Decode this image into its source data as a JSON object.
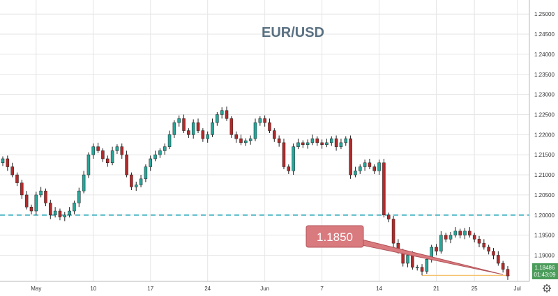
{
  "chart_data": {
    "type": "candlestick",
    "title": "EUR/USD",
    "grid": true,
    "ylim": [
      1.1835,
      1.2535
    ],
    "y_ticks": [
      "1.25000",
      "1.24500",
      "1.24000",
      "1.23500",
      "1.23000",
      "1.22500",
      "1.22000",
      "1.21500",
      "1.21000",
      "1.20500",
      "1.20000",
      "1.19500",
      "1.19000"
    ],
    "x_ticks": [
      {
        "label": "May",
        "index": 7
      },
      {
        "label": "10",
        "index": 19
      },
      {
        "label": "17",
        "index": 31
      },
      {
        "label": "24",
        "index": 43
      },
      {
        "label": "Jun",
        "index": 55
      },
      {
        "label": "7",
        "index": 67
      },
      {
        "label": "14",
        "index": 79
      },
      {
        "label": "21",
        "index": 91
      },
      {
        "label": "25",
        "index": 99
      },
      {
        "label": "Jul",
        "index": 108
      }
    ],
    "closes": [
      1.214,
      1.212,
      1.21,
      1.208,
      1.205,
      1.202,
      1.201,
      1.205,
      1.206,
      1.203,
      1.2,
      1.201,
      1.1995,
      1.2,
      1.201,
      1.203,
      1.206,
      1.21,
      1.215,
      1.217,
      1.216,
      1.214,
      1.213,
      1.216,
      1.217,
      1.215,
      1.21,
      1.207,
      1.2075,
      1.209,
      1.212,
      1.214,
      1.215,
      1.216,
      1.217,
      1.22,
      1.223,
      1.224,
      1.221,
      1.22,
      1.223,
      1.221,
      1.219,
      1.22,
      1.223,
      1.225,
      1.226,
      1.224,
      1.22,
      1.219,
      1.218,
      1.2185,
      1.219,
      1.223,
      1.224,
      1.223,
      1.221,
      1.219,
      1.218,
      1.212,
      1.211,
      1.217,
      1.218,
      1.2175,
      1.218,
      1.219,
      1.218,
      1.2175,
      1.218,
      1.219,
      1.217,
      1.218,
      1.219,
      1.21,
      1.211,
      1.212,
      1.213,
      1.212,
      1.211,
      1.213,
      1.2,
      1.199,
      1.193,
      1.191,
      1.188,
      1.19,
      1.187,
      1.187,
      1.186,
      1.189,
      1.192,
      1.191,
      1.195,
      1.194,
      1.195,
      1.196,
      1.195,
      1.196,
      1.195,
      1.194,
      1.193,
      1.192,
      1.191,
      1.19,
      1.188,
      1.1865,
      1.18486
    ],
    "reference_lines": [
      {
        "value": 1.2,
        "style": "dashed",
        "color": "#26a7b8"
      },
      {
        "value": 1.185,
        "style": "solid",
        "color": "#f5c26b"
      }
    ],
    "annotations": [
      {
        "text": "1.1850",
        "type": "callout",
        "points_to_index": 105,
        "points_to_value": 1.1852
      }
    ],
    "last_price": {
      "value": "1.18486",
      "countdown": "01:43:09"
    },
    "colors": {
      "up": "#26a69a",
      "down": "#b32a2a",
      "wick": "#1f1f1f",
      "grid": "#e6e6e6",
      "callout_fill": "#d97a7e",
      "price_tag": "#4a9c5a"
    }
  },
  "ui": {
    "settings_icon": "gear-icon"
  }
}
